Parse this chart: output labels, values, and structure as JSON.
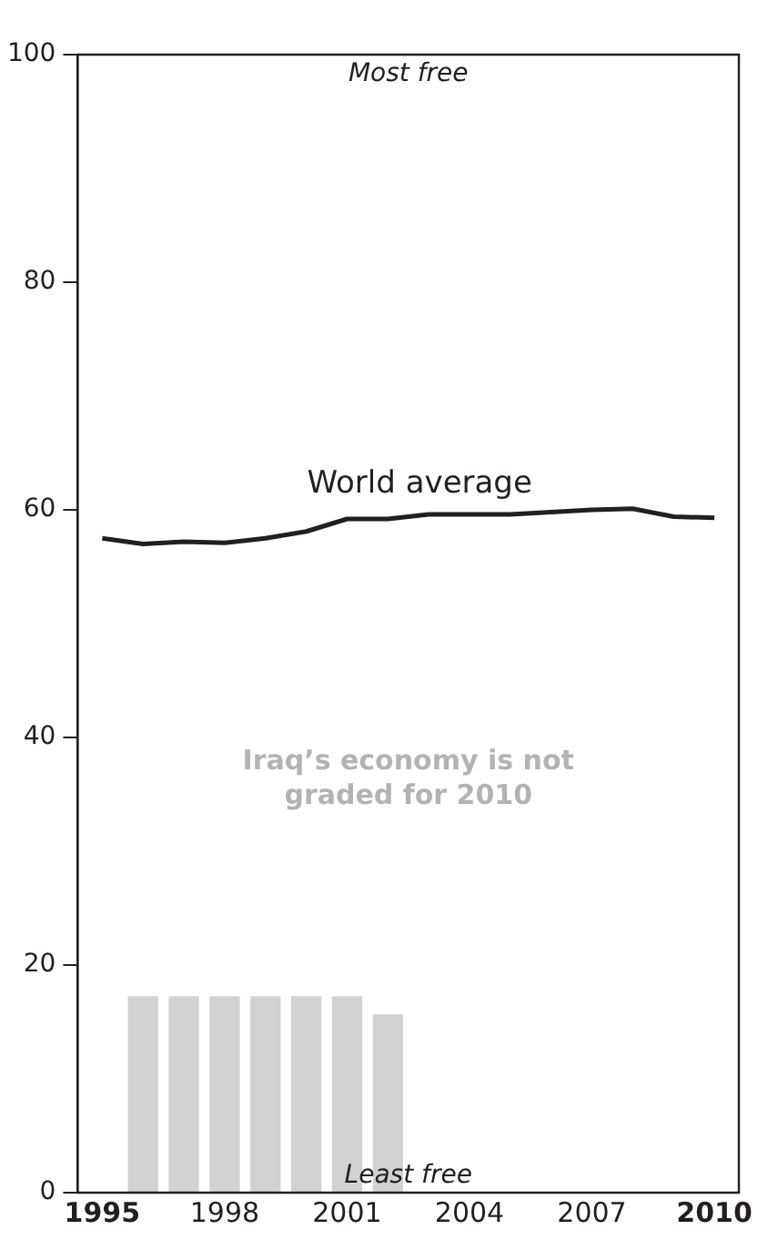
{
  "chart_data": {
    "type": "bar",
    "x": [
      1996,
      1997,
      1998,
      1999,
      2000,
      2001,
      2002
    ],
    "xlim": [
      1994.4,
      2010.6
    ],
    "xticks": [
      1995,
      1998,
      2001,
      2004,
      2007,
      2010
    ],
    "ylim": [
      0,
      100
    ],
    "yticks": [
      0,
      20,
      40,
      60,
      80,
      100
    ],
    "grid": false,
    "legend": false,
    "series": [
      {
        "color": "#d1d2d4",
        "values": [
          17.2,
          17.2,
          17.2,
          17.2,
          17.2,
          17.2,
          15.6
        ]
      },
      {
        "type": "line",
        "name": "World average",
        "color": "#231f20",
        "x": [
          1995,
          1996,
          1997,
          1998,
          1999,
          2000,
          2001,
          2002,
          2003,
          2004,
          2005,
          2006,
          2007,
          2008,
          2009,
          2010
        ],
        "values": [
          57.5,
          57.0,
          57.2,
          57.1,
          57.5,
          58.1,
          59.2,
          59.2,
          59.6,
          59.6,
          59.6,
          59.8,
          60.0,
          60.1,
          59.4,
          59.3
        ]
      }
    ],
    "annotations": [
      "Most free",
      "Least free",
      "Iraq’s economy is not graded for 2010"
    ]
  }
}
